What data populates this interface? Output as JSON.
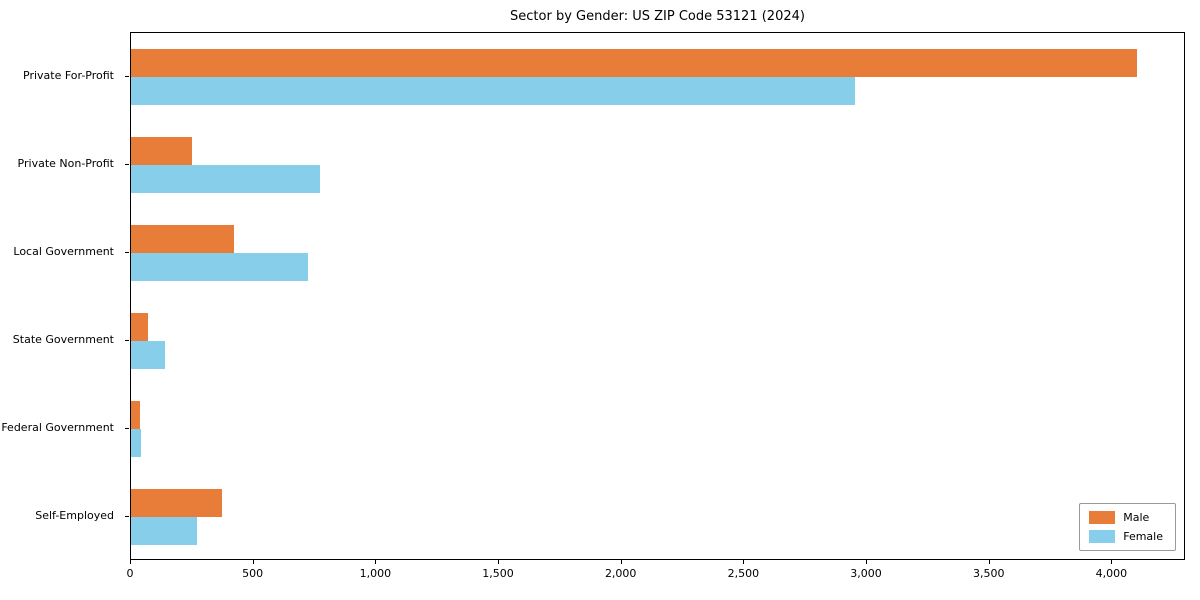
{
  "chart_data": {
    "type": "bar",
    "orientation": "horizontal",
    "title": "Sector by Gender: US ZIP Code 53121 (2024)",
    "categories": [
      "Private For-Profit",
      "Private Non-Profit",
      "Local Government",
      "State Government",
      "Federal Government",
      "Self-Employed"
    ],
    "series": [
      {
        "name": "Male",
        "color": "#e87d3a",
        "values": [
          4100,
          250,
          420,
          70,
          35,
          370
        ]
      },
      {
        "name": "Female",
        "color": "#87ceeb",
        "values": [
          2950,
          770,
          720,
          140,
          40,
          270
        ]
      }
    ],
    "xlim": [
      0,
      4300
    ],
    "x_ticks": [
      0,
      500,
      1000,
      1500,
      2000,
      2500,
      3000,
      3500,
      4000
    ],
    "x_tick_labels": [
      "0",
      "500",
      "1,000",
      "1,500",
      "2,000",
      "2,500",
      "3,000",
      "3,500",
      "4,000"
    ],
    "ylabel": "",
    "xlabel": "",
    "grid": false,
    "legend_position": "lower right"
  }
}
